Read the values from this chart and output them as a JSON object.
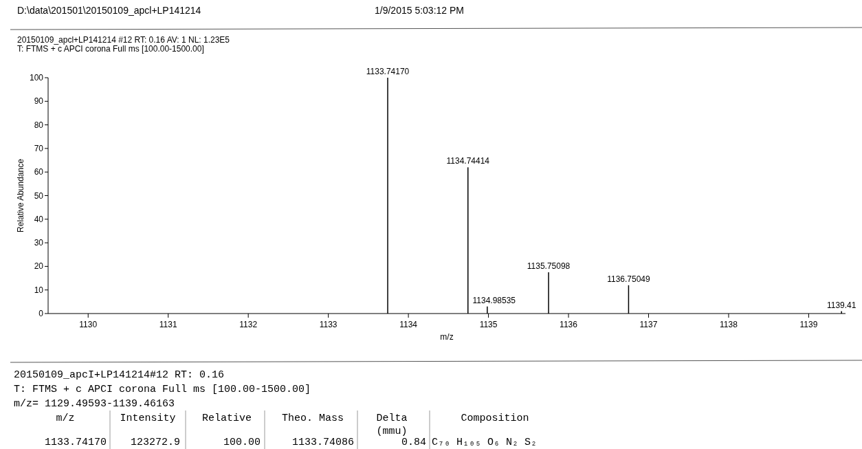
{
  "chart_data": {
    "type": "bar",
    "title": "20150109_apcl+LP141214 #12  RT: 0.16  AV: 1  NL: 1.23E5",
    "subtitle": "T: FTMS + c APCI corona Full ms [100.00-1500.00]",
    "xlabel": "m/z",
    "ylabel": "Relative Abundance",
    "x": [
      1133.7417,
      1134.74414,
      1134.98535,
      1135.75098,
      1136.75049,
      1139.41
    ],
    "values": [
      100,
      62,
      3,
      17.5,
      12,
      1
    ],
    "color": "#000000",
    "xlim": [
      1129.5,
      1139.46
    ],
    "xticks": [
      1130,
      1131,
      1132,
      1133,
      1134,
      1135,
      1136,
      1137,
      1138,
      1139
    ],
    "ylim": [
      0,
      100
    ],
    "yticks": [
      0,
      10,
      20,
      30,
      40,
      50,
      60,
      70,
      80,
      90,
      100
    ],
    "annotations": [
      "D:\\data\\201501\\20150109_apcl+LP141214",
      "1/9/2015 5:03:12 PM",
      "20150109_apcI+LP141214#12 RT: 0.16",
      "T: FTMS + c APCI corona Full ms [100.00-1500.00]",
      "m/z= 1129.49593-1139.46163",
      "m/z",
      "Intensity",
      "Relative",
      "Theo. Mass",
      "Delta",
      "(mmu)",
      "Composition",
      "1133.74170",
      "123272.9",
      "100.00",
      "1133.74086",
      "0.84",
      "C₇₀ H₁₀₅ O₆ N₂ S₂",
      {
        "text": "1133.74170",
        "x": 1133.7417,
        "y": 100
      },
      {
        "text": "1134.74414",
        "x": 1134.74414,
        "y": 62
      },
      {
        "text": "1134.98535",
        "x": 1134.98535,
        "y": 3
      },
      {
        "text": "1135.75098",
        "x": 1135.75098,
        "y": 17.5
      },
      {
        "text": "1136.75049",
        "x": 1136.75049,
        "y": 12
      },
      {
        "text": "1139.41",
        "x": 1139.41,
        "y": 1
      }
    ]
  }
}
